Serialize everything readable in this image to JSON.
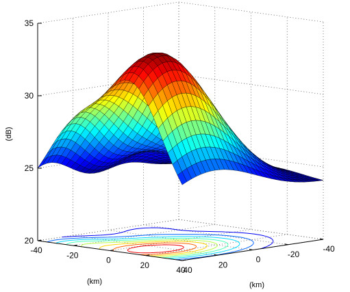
{
  "chart_data": {
    "type": "surface",
    "title": "",
    "xlabel": "(km)",
    "ylabel": "(km)",
    "zlabel": "(dB)",
    "x_ticks": [
      "40",
      "20",
      "0",
      "-20",
      "-40"
    ],
    "y_ticks": [
      "40",
      "20",
      "0",
      "-20",
      "-40"
    ],
    "z_ticks": [
      "35",
      "30",
      "25",
      "20"
    ],
    "xlim": [
      -40,
      40
    ],
    "ylim": [
      -40,
      40
    ],
    "zlim": [
      20,
      35
    ],
    "grid": true,
    "colormap": "jet",
    "surface": {
      "peak": {
        "x": 10,
        "y": 25,
        "z": 34.5
      },
      "secondary_peak": {
        "x": -20,
        "y": 35,
        "z": 30.2
      },
      "min_value": 23.5
    },
    "contour_projection": true
  }
}
